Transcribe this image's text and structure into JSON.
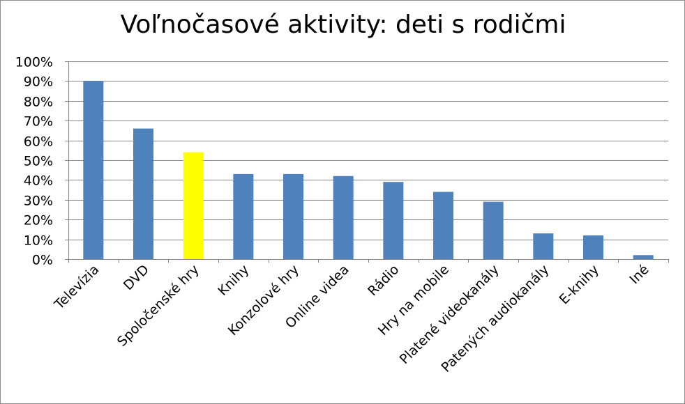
{
  "chart_data": {
    "type": "bar",
    "title": "Voľnočasové aktivity: deti s rodičmi",
    "categories": [
      "Televízia",
      "DVD",
      "Spoločenské hry",
      "Knihy",
      "Konzolové hry",
      "Online videa",
      "Rádio",
      "Hry na mobile",
      "Platené videokanály",
      "Patených audiokanály",
      "E-knihy",
      "Iné"
    ],
    "values": [
      90,
      66,
      54,
      43,
      43,
      42,
      39,
      34,
      29,
      13,
      12,
      2
    ],
    "unit": "%",
    "ylim": [
      0,
      100
    ],
    "yticks": [
      "0%",
      "10%",
      "20%",
      "30%",
      "40%",
      "50%",
      "60%",
      "70%",
      "80%",
      "90%",
      "100%"
    ],
    "grid": true,
    "legend": "none",
    "bar_color": "#4f81bd",
    "highlight_color": "#ffff00",
    "highlight_index": 2
  }
}
